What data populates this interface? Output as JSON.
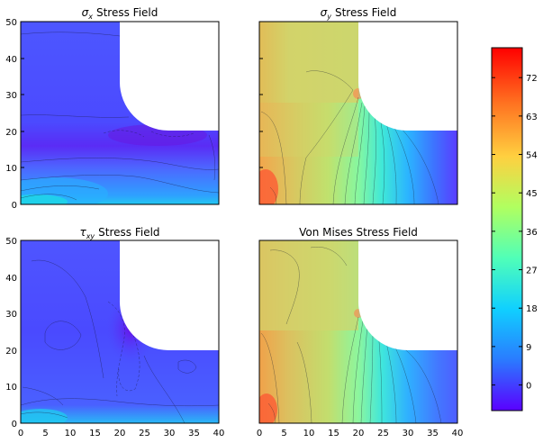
{
  "chart_data": [
    {
      "type": "heatmap",
      "id": "sx",
      "title_math": "σ",
      "title_sub": "x",
      "title_text": "Stress Field",
      "xticks": [],
      "yticks": [
        "0",
        "10",
        "20",
        "30",
        "40",
        "50"
      ],
      "xlim": [
        0,
        40
      ],
      "ylim": [
        0,
        50
      ],
      "colormap": "rainbow",
      "cutout": {
        "x_from": 20,
        "y_from": 20,
        "hole_center": [
          20,
          40
        ],
        "hole_radius": 20
      },
      "dominant_color": "#4a55ff"
    },
    {
      "type": "heatmap",
      "id": "sy",
      "title_math": "σ",
      "title_sub": "y",
      "title_text": "Stress Field",
      "xticks": [],
      "yticks": [],
      "xlim": [
        0,
        40
      ],
      "ylim": [
        0,
        50
      ],
      "colormap": "rainbow",
      "cutout": {
        "x_from": 20,
        "y_from": 20,
        "hole_center": [
          20,
          40
        ],
        "hole_radius": 20
      },
      "dominant_color": "#c9d86a"
    },
    {
      "type": "heatmap",
      "id": "txy",
      "title_math": "τ",
      "title_sub": "xy",
      "title_text": "Stress Field",
      "xticks": [
        "0",
        "5",
        "10",
        "15",
        "20",
        "25",
        "30",
        "35",
        "40"
      ],
      "yticks": [
        "0",
        "10",
        "20",
        "30",
        "40",
        "50"
      ],
      "xlim": [
        0,
        40
      ],
      "ylim": [
        0,
        50
      ],
      "colormap": "rainbow",
      "cutout": {
        "x_from": 20,
        "y_from": 20,
        "hole_center": [
          20,
          40
        ],
        "hole_radius": 20
      },
      "dominant_color": "#4a55ff"
    },
    {
      "type": "heatmap",
      "id": "vm",
      "title_math": "",
      "title_sub": "",
      "title_text": "Von Mises Stress Field",
      "xticks": [
        "0",
        "5",
        "10",
        "15",
        "20",
        "25",
        "30",
        "35",
        "40"
      ],
      "yticks": [],
      "xlim": [
        0,
        40
      ],
      "ylim": [
        0,
        50
      ],
      "colormap": "rainbow",
      "cutout": {
        "x_from": 20,
        "y_from": 20,
        "hole_center": [
          20,
          40
        ],
        "hole_radius": 20
      },
      "dominant_color": "#c9d86a"
    }
  ],
  "colorbar": {
    "ticks": [
      "0",
      "9",
      "18",
      "27",
      "36",
      "45",
      "54",
      "63",
      "72"
    ],
    "tick_values": [
      0,
      9,
      18,
      27,
      36,
      45,
      54,
      63,
      72
    ],
    "range": [
      -6,
      79
    ],
    "colormap": [
      "#5a00ff",
      "#2a7bff",
      "#10d0ff",
      "#50ffb8",
      "#b0ff60",
      "#ffd040",
      "#ff7020",
      "#ff0000"
    ]
  }
}
